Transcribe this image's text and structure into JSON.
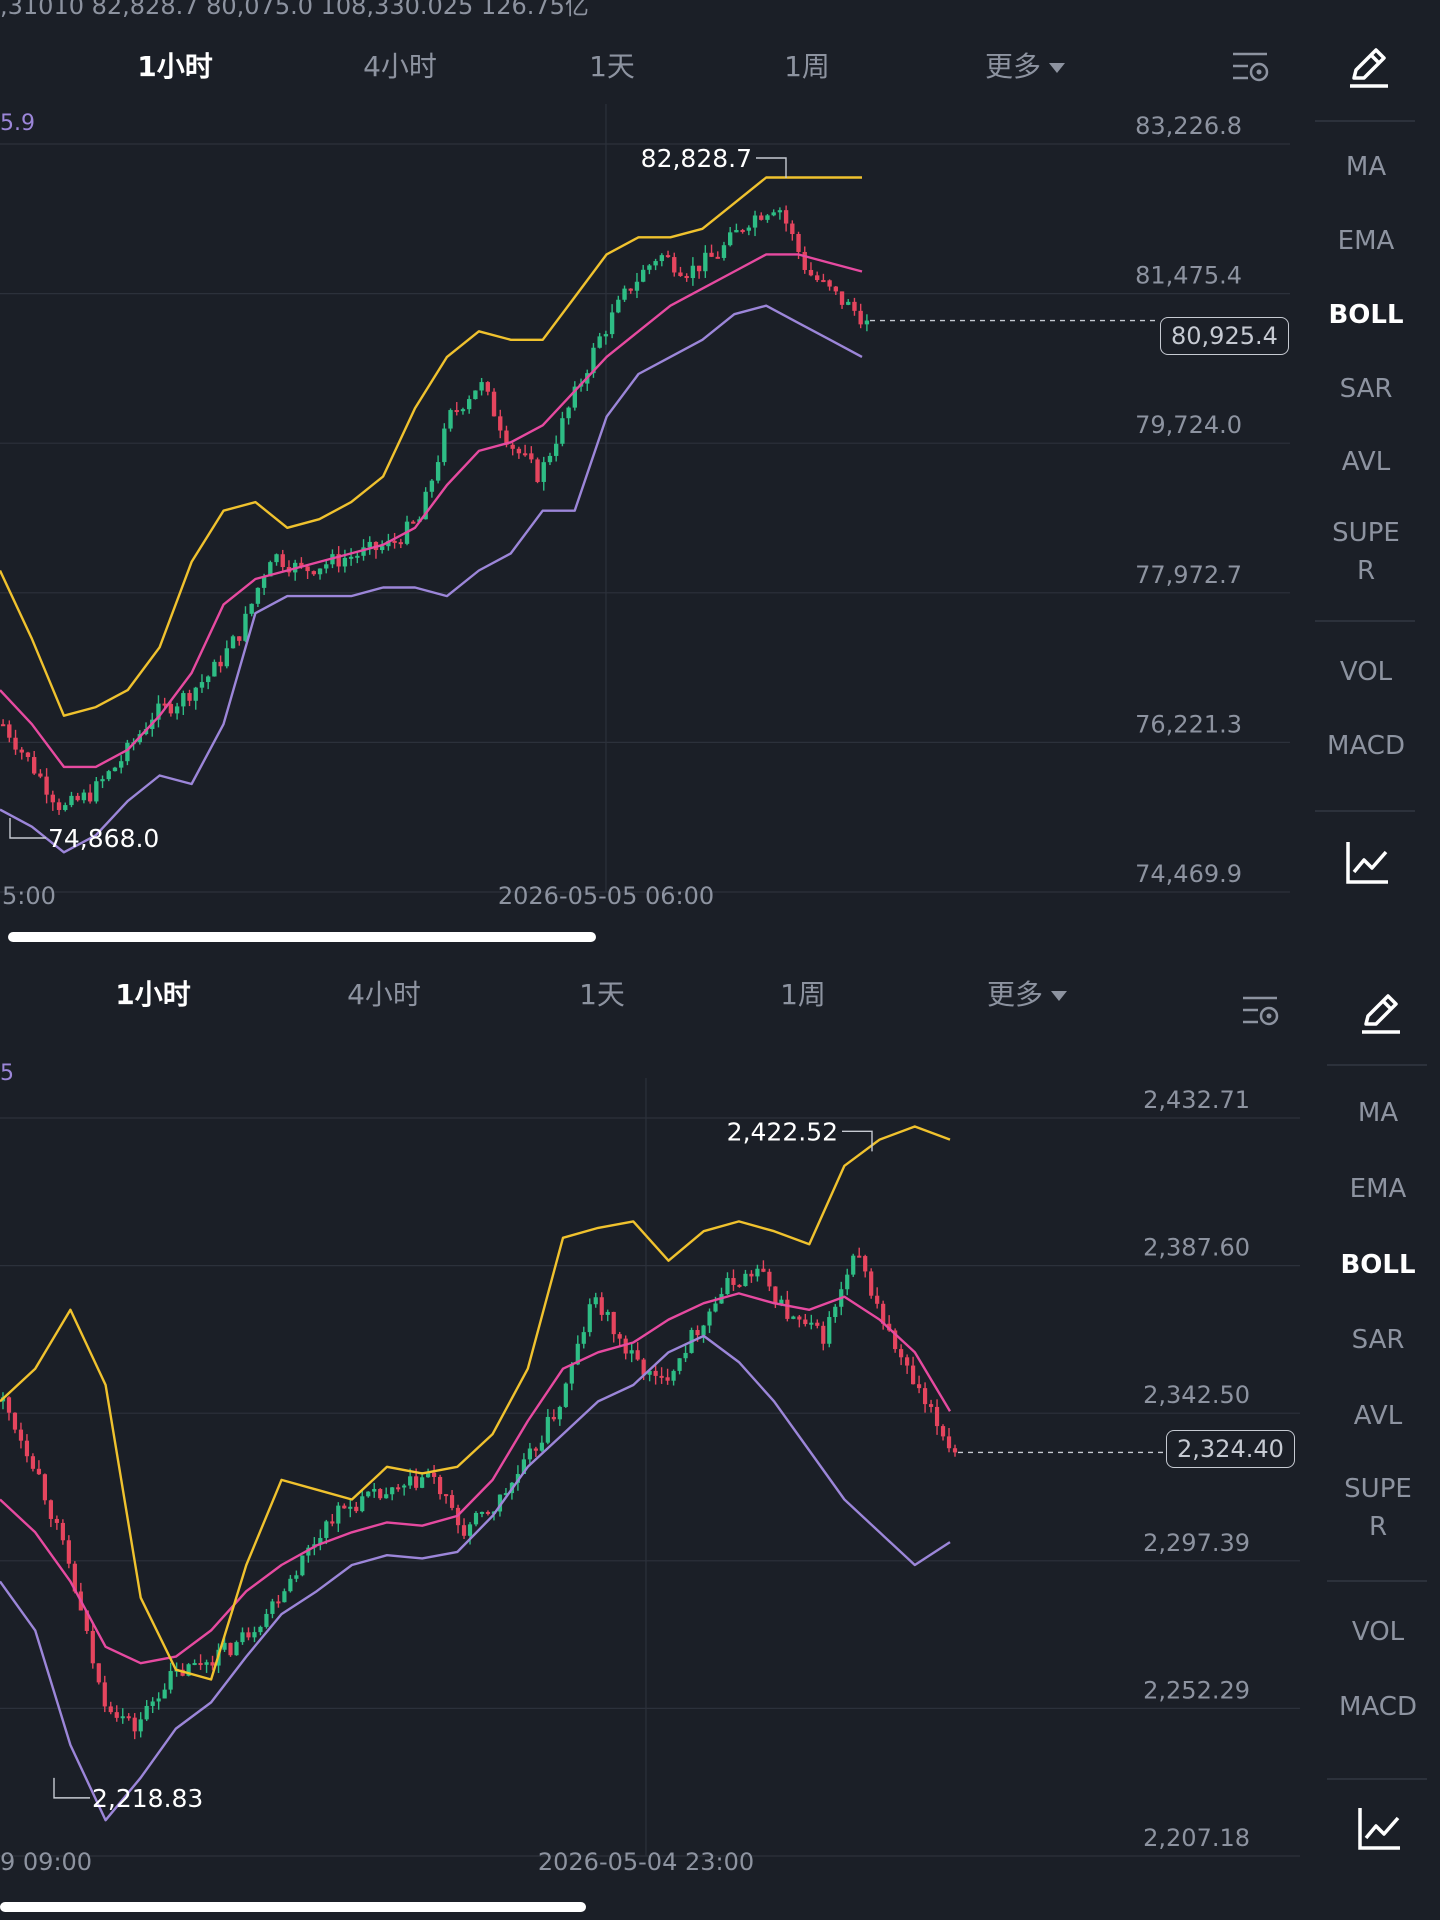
{
  "colors": {
    "background": "#1b1f27",
    "grid": "#2c313b",
    "up": "#2ebd85",
    "down": "#e5455e",
    "boll_upper": "#f0c22e",
    "boll_mid": "#e64aa0",
    "boll_lower": "#9c86d9",
    "text": "#8d93a0",
    "active": "#ffffff"
  },
  "panels": [
    {
      "top_text": ",31010   82,828.7       80,075.0      108,330.025        126.75亿",
      "corner_value": "5.9",
      "tabs": [
        "1小时",
        "4小时",
        "1天",
        "1周",
        "更多"
      ],
      "active_tab": "1小时",
      "sidebar": [
        "MA",
        "EMA",
        "BOLL",
        "SAR",
        "AVL",
        "SUPE\nR",
        "VOL",
        "MACD"
      ],
      "active_indicator": "BOLL",
      "current_price": "80,925.4",
      "high_label": "82,828.7",
      "low_label": "74,868.0",
      "time_left": "5:00",
      "time_mid": "2026-05-05 06:00"
    },
    {
      "corner_value": "5",
      "tabs": [
        "1小时",
        "4小时",
        "1天",
        "1周",
        "更多"
      ],
      "active_tab": "1小时",
      "sidebar": [
        "MA",
        "EMA",
        "BOLL",
        "SAR",
        "AVL",
        "SUPE\nR",
        "VOL",
        "MACD"
      ],
      "active_indicator": "BOLL",
      "current_price": "2,324.40",
      "high_label": "2,422.52",
      "low_label": "2,218.83",
      "time_left": "9 09:00",
      "time_mid": "2026-05-04 23:00"
    }
  ],
  "chart_data": [
    {
      "type": "candlestick",
      "indicator": "BOLL",
      "y_ticks": [
        "83,226.8",
        "81,475.4",
        "79,724.0",
        "77,972.7",
        "76,221.3",
        "74,469.9"
      ],
      "ylim": [
        74469.9,
        83226.8
      ],
      "high": 82828.7,
      "low": 74868.0,
      "last": 80925.4,
      "x_labels": [
        "5:00",
        "2026-05-05 06:00"
      ],
      "close_path": [
        76200,
        75700,
        75200,
        75400,
        75800,
        76300,
        76500,
        76800,
        77300,
        78200,
        78000,
        78100,
        78200,
        78300,
        78600,
        79800,
        80200,
        79500,
        79100,
        79900,
        80700,
        81300,
        81700,
        81500,
        81700,
        82100,
        82300,
        81500,
        81200,
        80925.4
      ],
      "upper_path": [
        78000,
        77200,
        76300,
        76400,
        76600,
        77100,
        78100,
        78700,
        78800,
        78500,
        78600,
        78800,
        79100,
        79900,
        80500,
        80800,
        80700,
        80700,
        81200,
        81700,
        81900,
        81900,
        82000,
        82300,
        82600,
        82600,
        82600,
        82600
      ],
      "mid_path": [
        76600,
        76200,
        75700,
        75700,
        75900,
        76300,
        76800,
        77600,
        77900,
        78000,
        78100,
        78200,
        78300,
        78500,
        79000,
        79400,
        79500,
        79700,
        80100,
        80500,
        80800,
        81100,
        81300,
        81500,
        81700,
        81700,
        81600,
        81500
      ],
      "lower_path": [
        75200,
        75000,
        74700,
        74900,
        75300,
        75600,
        75500,
        76200,
        77500,
        77700,
        77700,
        77700,
        77800,
        77800,
        77700,
        78000,
        78200,
        78700,
        78700,
        79800,
        80300,
        80500,
        80700,
        81000,
        81100,
        80900,
        80700,
        80500
      ]
    },
    {
      "type": "candlestick",
      "indicator": "BOLL",
      "y_ticks": [
        "2,432.71",
        "2,387.60",
        "2,342.50",
        "2,297.39",
        "2,252.29",
        "2,207.18"
      ],
      "ylim": [
        2207.18,
        2432.71
      ],
      "high": 2422.52,
      "low": 2218.83,
      "last": 2324.4,
      "x_labels": [
        "9 09:00",
        "2026-05-04 23:00"
      ],
      "close_path": [
        2340,
        2320,
        2290,
        2250,
        2240,
        2255,
        2260,
        2265,
        2275,
        2290,
        2305,
        2310,
        2312,
        2318,
        2300,
        2308,
        2322,
        2340,
        2372,
        2355,
        2345,
        2360,
        2375,
        2380,
        2365,
        2360,
        2385,
        2360,
        2340,
        2324.4
      ],
      "upper_path": [
        2340,
        2350,
        2368,
        2345,
        2280,
        2258,
        2255,
        2290,
        2316,
        2313,
        2310,
        2320,
        2318,
        2320,
        2330,
        2350,
        2390,
        2393,
        2395,
        2383,
        2392,
        2395,
        2392,
        2388,
        2412,
        2420,
        2424,
        2420
      ],
      "mid_path": [
        2310,
        2300,
        2285,
        2265,
        2260,
        2262,
        2270,
        2282,
        2290,
        2296,
        2300,
        2303,
        2302,
        2305,
        2316,
        2334,
        2350,
        2355,
        2358,
        2365,
        2370,
        2373,
        2370,
        2368,
        2372,
        2365,
        2355,
        2337
      ],
      "lower_path": [
        2285,
        2270,
        2235,
        2212,
        2225,
        2240,
        2248,
        2262,
        2275,
        2282,
        2290,
        2293,
        2292,
        2294,
        2305,
        2320,
        2330,
        2340,
        2345,
        2355,
        2360,
        2352,
        2340,
        2325,
        2310,
        2300,
        2290,
        2297
      ]
    }
  ]
}
